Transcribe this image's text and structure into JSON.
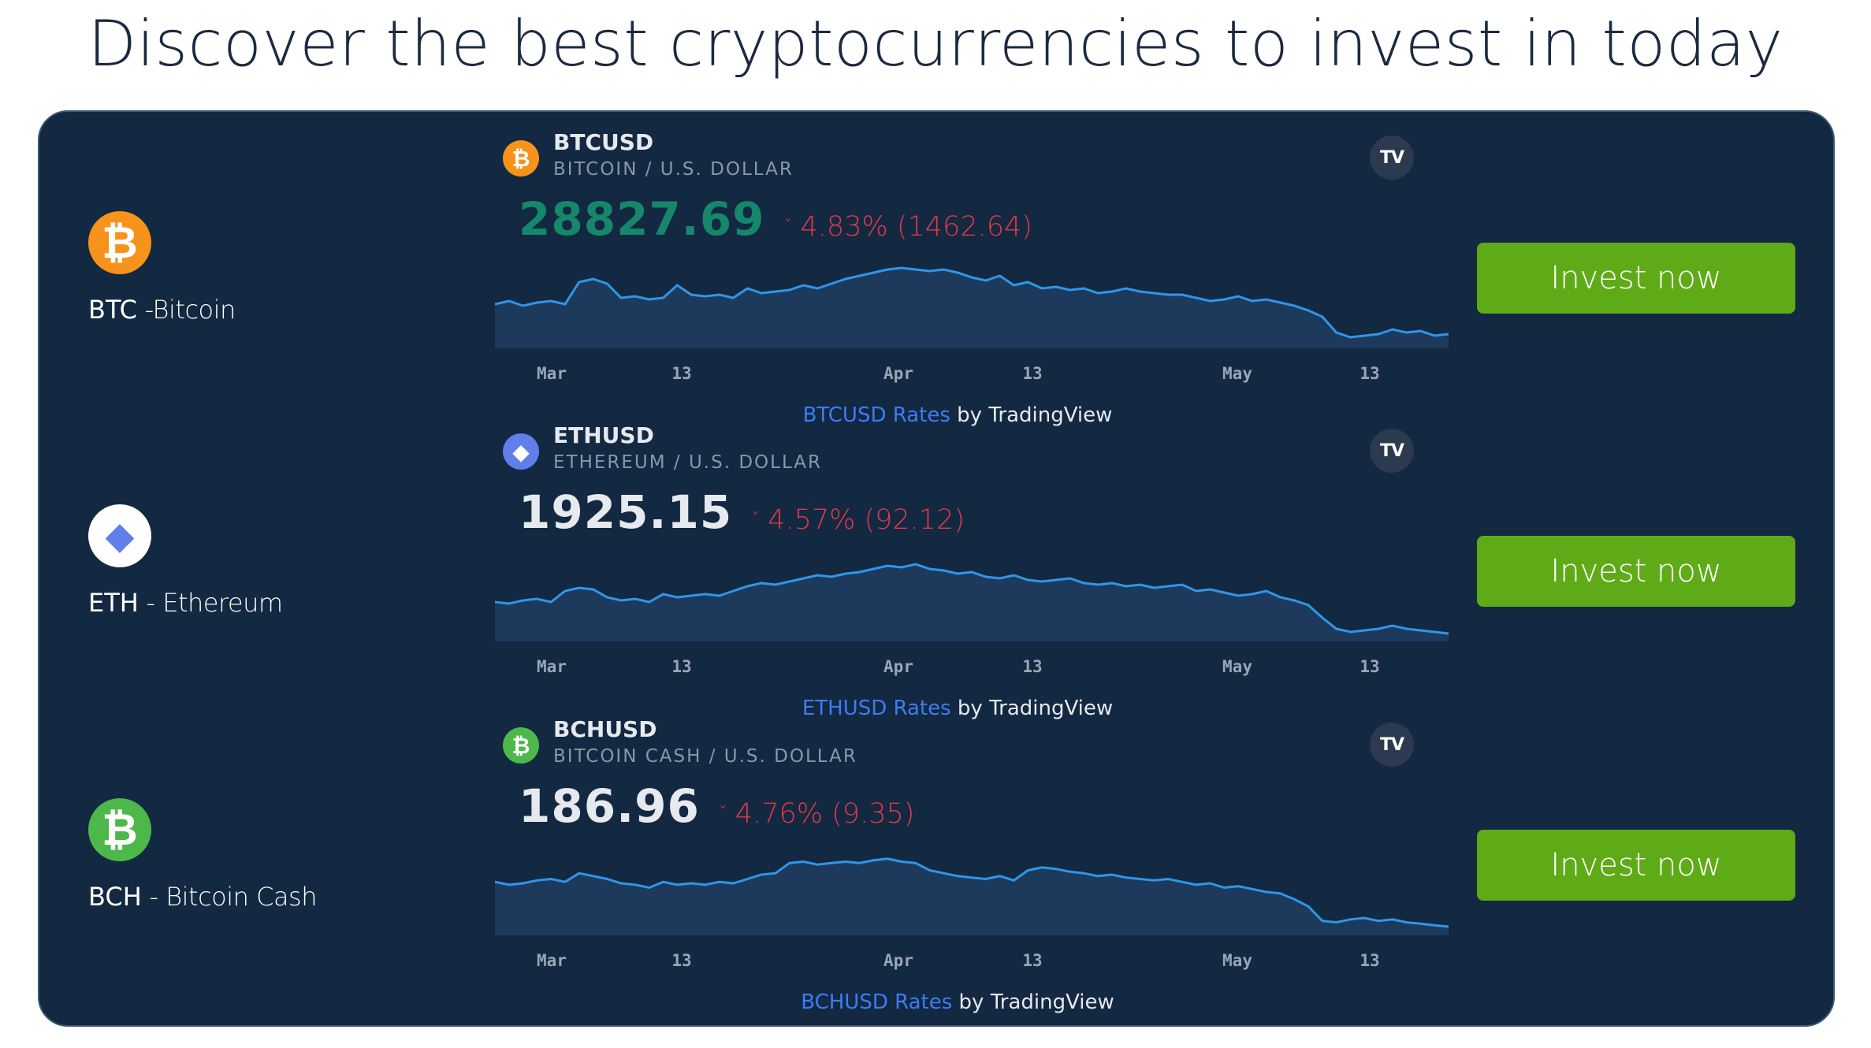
{
  "page": {
    "title": "Discover the best cryptocurrencies to invest in today"
  },
  "colors": {
    "panel_bg": "#132841",
    "button_green": "#5fab17",
    "price_up_green": "#17876b",
    "change_red": "#e0394a",
    "line_blue": "#2f96ea",
    "link_blue": "#3d7cf5"
  },
  "x_axis_labels": [
    "Mar",
    "13",
    "Apr",
    "13",
    "May",
    "13"
  ],
  "attribution_suffix": "by TradingView",
  "tv_logo_text": "TV",
  "coins": [
    {
      "symbol": "BTC",
      "name_suffix": " -Bitcoin",
      "logo_icon": "bitcoin-icon",
      "logo_color": "#f7931a",
      "logo_glyph": "₿",
      "ticker": "BTCUSD",
      "ticker_desc": "BITCOIN / U.S. DOLLAR",
      "price": "28827.69",
      "price_color": "#17876b",
      "change": "4.83% (1462.64)",
      "chevron": "ˇ",
      "rates_link": "BTCUSD Rates",
      "invest_label": "Invest now",
      "sparkline": [
        38,
        40,
        37,
        39,
        40,
        38,
        52,
        54,
        51,
        42,
        43,
        41,
        42,
        50,
        44,
        43,
        44,
        42,
        48,
        45,
        46,
        47,
        50,
        48,
        51,
        54,
        56,
        58,
        60,
        61,
        60,
        59,
        60,
        58,
        55,
        53,
        56,
        50,
        52,
        48,
        49,
        47,
        48,
        45,
        46,
        48,
        46,
        45,
        44,
        44,
        42,
        40,
        41,
        43,
        40,
        41,
        39,
        37,
        34,
        30,
        20,
        17,
        18,
        19,
        22,
        20,
        21,
        18,
        19
      ],
      "spark_min": 10,
      "spark_max": 65
    },
    {
      "symbol": "ETH",
      "name_suffix": " - Ethereum",
      "logo_icon": "ethereum-icon",
      "logo_color": "#ffffff",
      "logo_glyph": "◆",
      "ticker": "ETHUSD",
      "ticker_desc": "ETHEREUM / U.S. DOLLAR",
      "price": "1925.15",
      "price_color": "#e6e9ee",
      "change": "4.57% (92.12)",
      "chevron": "ˇ",
      "rates_link": "ETHUSD Rates",
      "invest_label": "Invest now",
      "sparkline": [
        35,
        34,
        36,
        37,
        35,
        42,
        44,
        43,
        38,
        36,
        37,
        35,
        40,
        38,
        39,
        40,
        39,
        42,
        45,
        47,
        46,
        48,
        50,
        52,
        51,
        53,
        54,
        56,
        58,
        57,
        59,
        56,
        55,
        53,
        54,
        51,
        50,
        52,
        49,
        48,
        49,
        50,
        47,
        46,
        47,
        45,
        46,
        44,
        45,
        46,
        42,
        43,
        41,
        39,
        40,
        42,
        38,
        36,
        33,
        25,
        18,
        16,
        17,
        18,
        20,
        18,
        17,
        16,
        15
      ],
      "spark_min": 10,
      "spark_max": 65
    },
    {
      "symbol": "BCH",
      "name_suffix": " - Bitcoin Cash",
      "logo_icon": "bitcoin-cash-icon",
      "logo_color": "#4cb84a",
      "logo_glyph": "₿",
      "ticker": "BCHUSD",
      "ticker_desc": "BITCOIN CASH / U.S. DOLLAR",
      "price": "186.96",
      "price_color": "#e6e9ee",
      "change": "4.76% (9.35)",
      "chevron": "ˇ",
      "rates_link": "BCHUSD Rates",
      "invest_label": "Invest now",
      "sparkline": [
        42,
        40,
        41,
        43,
        44,
        42,
        48,
        46,
        44,
        41,
        40,
        38,
        42,
        40,
        41,
        40,
        42,
        41,
        44,
        47,
        48,
        55,
        56,
        54,
        55,
        56,
        55,
        57,
        58,
        56,
        55,
        50,
        48,
        46,
        45,
        44,
        46,
        43,
        50,
        52,
        51,
        49,
        48,
        46,
        47,
        45,
        44,
        43,
        44,
        42,
        40,
        41,
        38,
        39,
        37,
        35,
        34,
        30,
        25,
        15,
        14,
        16,
        17,
        15,
        16,
        14,
        13,
        12,
        11
      ],
      "spark_min": 5,
      "spark_max": 65
    }
  ]
}
